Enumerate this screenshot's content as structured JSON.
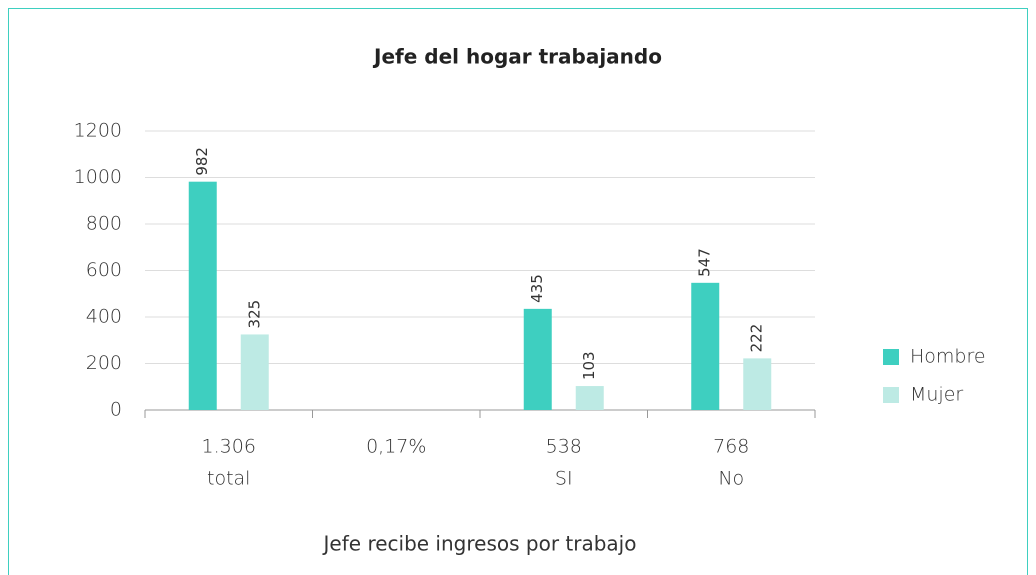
{
  "chart_data": {
    "type": "bar",
    "title": "Jefe del hogar trabajando",
    "xlabel": "Jefe recibe ingresos por trabajo",
    "categories": [
      [
        "1.306",
        "total"
      ],
      [
        "0,17%"
      ],
      [
        "538",
        "SI"
      ],
      [
        "768",
        "No"
      ]
    ],
    "series": [
      {
        "name": "Hombre",
        "color": "#3ecfc0",
        "values": [
          982,
          null,
          435,
          547
        ]
      },
      {
        "name": "Mujer",
        "color": "#bdeae4",
        "values": [
          325,
          null,
          103,
          222
        ]
      }
    ],
    "ylim": [
      0,
      1200
    ],
    "yticks": [
      0,
      200,
      400,
      600,
      800,
      1000,
      1200
    ],
    "grid": true,
    "legend": "right"
  }
}
